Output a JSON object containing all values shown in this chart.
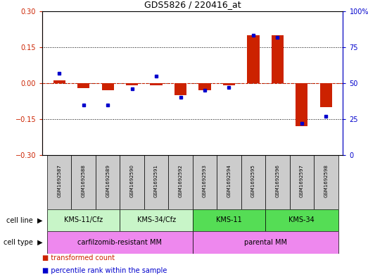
{
  "title": "GDS5826 / 220416_at",
  "samples": [
    "GSM1692587",
    "GSM1692588",
    "GSM1692589",
    "GSM1692590",
    "GSM1692591",
    "GSM1692592",
    "GSM1692593",
    "GSM1692594",
    "GSM1692595",
    "GSM1692596",
    "GSM1692597",
    "GSM1692598"
  ],
  "transformed_count": [
    0.01,
    -0.02,
    -0.03,
    -0.01,
    -0.01,
    -0.05,
    -0.03,
    -0.01,
    0.2,
    0.2,
    -0.18,
    -0.1
  ],
  "percentile_rank": [
    57,
    35,
    35,
    46,
    55,
    40,
    45,
    47,
    83,
    82,
    22,
    27
  ],
  "cell_line_groups": [
    {
      "label": "KMS-11/Cfz",
      "start": 0,
      "end": 2,
      "color": "#c8f5c8"
    },
    {
      "label": "KMS-34/Cfz",
      "start": 3,
      "end": 5,
      "color": "#c8f5c8"
    },
    {
      "label": "KMS-11",
      "start": 6,
      "end": 8,
      "color": "#55dd55"
    },
    {
      "label": "KMS-34",
      "start": 9,
      "end": 11,
      "color": "#55dd55"
    }
  ],
  "cell_type_groups": [
    {
      "label": "carfilzomib-resistant MM",
      "start": 0,
      "end": 5,
      "color": "#ee88ee"
    },
    {
      "label": "parental MM",
      "start": 6,
      "end": 11,
      "color": "#ee88ee"
    }
  ],
  "ylim_left": [
    -0.3,
    0.3
  ],
  "ylim_right": [
    0,
    100
  ],
  "yticks_left": [
    -0.3,
    -0.15,
    0.0,
    0.15,
    0.3
  ],
  "yticks_right": [
    0,
    25,
    50,
    75,
    100
  ],
  "bar_color_red": "#cc2200",
  "bar_color_blue": "#0000cc",
  "legend_red": "transformed count",
  "legend_blue": "percentile rank within the sample",
  "background_color": "#ffffff",
  "bar_width": 0.5,
  "gsm_bg_color": "#cccccc",
  "cell_line_label": "cell line",
  "cell_type_label": "cell type"
}
